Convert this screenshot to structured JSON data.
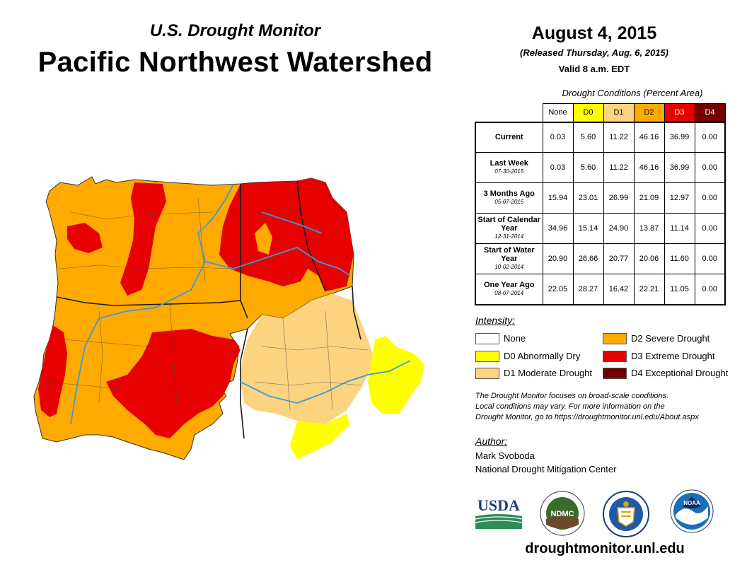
{
  "header": {
    "subtitle": "U.S. Drought Monitor",
    "title": "Pacific Northwest Watershed",
    "date": "August 4, 2015",
    "released": "(Released Thursday, Aug. 6, 2015)",
    "valid": "Valid 8 a.m. EDT"
  },
  "table": {
    "caption": "Drought Conditions (Percent Area)",
    "columns": [
      {
        "label": "None",
        "color": "#ffffff"
      },
      {
        "label": "D0",
        "color": "#ffff00"
      },
      {
        "label": "D1",
        "color": "#fcd37f"
      },
      {
        "label": "D2",
        "color": "#ffaa00"
      },
      {
        "label": "D3",
        "color": "#e60000"
      },
      {
        "label": "D4",
        "color": "#730000"
      }
    ],
    "rows": [
      {
        "label": "Current",
        "date": "",
        "values": [
          "0.03",
          "5.60",
          "11.22",
          "46.16",
          "36.99",
          "0.00"
        ]
      },
      {
        "label": "Last Week",
        "date": "07-30-2015",
        "values": [
          "0.03",
          "5.60",
          "11.22",
          "46.16",
          "36.99",
          "0.00"
        ]
      },
      {
        "label": "3 Months Ago",
        "date": "05-07-2015",
        "values": [
          "15.94",
          "23.01",
          "26.99",
          "21.09",
          "12.97",
          "0.00"
        ]
      },
      {
        "label": "Start of Calendar Year",
        "date": "12-31-2014",
        "values": [
          "34.96",
          "15.14",
          "24.90",
          "13.87",
          "11.14",
          "0.00"
        ]
      },
      {
        "label": "Start of Water Year",
        "date": "10-02-2014",
        "values": [
          "20.90",
          "26.66",
          "20.77",
          "20.06",
          "11.60",
          "0.00"
        ]
      },
      {
        "label": "One Year Ago",
        "date": "08-07-2014",
        "values": [
          "22.05",
          "28.27",
          "16.42",
          "22.21",
          "11.05",
          "0.00"
        ]
      }
    ]
  },
  "legend": {
    "heading": "Intensity:",
    "items": [
      {
        "label": "None",
        "color": "#ffffff"
      },
      {
        "label": "D0 Abnormally Dry",
        "color": "#ffff00"
      },
      {
        "label": "D1 Moderate Drought",
        "color": "#fcd37f"
      },
      {
        "label": "D2 Severe Drought",
        "color": "#ffaa00"
      },
      {
        "label": "D3 Extreme Drought",
        "color": "#e60000"
      },
      {
        "label": "D4 Exceptional Drought",
        "color": "#730000"
      }
    ]
  },
  "disclaimer": {
    "line1": "The Drought Monitor focuses on broad-scale conditions.",
    "line2": "Local conditions may vary. For more information on the",
    "line3": "Drought Monitor, go to https://droughtmonitor.unl.edu/About.aspx"
  },
  "author": {
    "heading": "Author:",
    "name": "Mark Svoboda",
    "org": "National Drought Mitigation Center"
  },
  "logos": {
    "usda": "USDA",
    "ndmc": "NDMC",
    "noaa": "NOAA"
  },
  "footer": {
    "url": "droughtmonitor.unl.edu"
  },
  "colors": {
    "river": "#3a9ad9",
    "boundary": "#1a1a1a"
  }
}
